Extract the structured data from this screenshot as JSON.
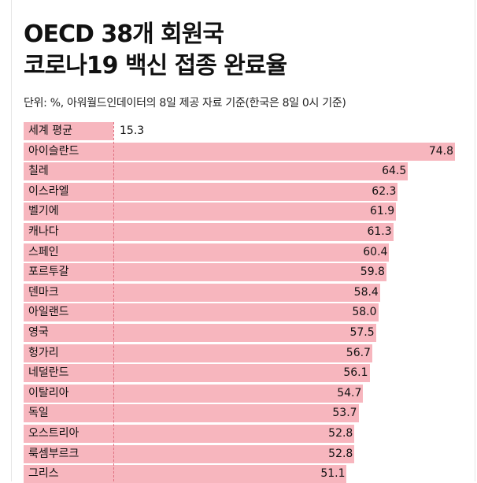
{
  "title": {
    "line1": "OECD 38개 회원국",
    "line2": "코로나19 백신 접종 완료율"
  },
  "unit_note": "단위: %, 아워월드인데이터의 8일 제공 자료 기준(한국은 8일 0시 기준)",
  "chart_data": {
    "type": "bar",
    "orientation": "horizontal",
    "title": "OECD 38개 회원국 코로나19 백신 접종 완료율",
    "xlabel": "단위: %",
    "xlim": [
      0,
      74.8
    ],
    "categories": [
      "세계 평균",
      "아이슬란드",
      "칠레",
      "이스라엘",
      "벨기에",
      "캐나다",
      "스페인",
      "포르투갈",
      "덴마크",
      "아일랜드",
      "영국",
      "헝가리",
      "네덜란드",
      "이탈리아",
      "독일",
      "오스트리아",
      "룩셈부르크",
      "그리스"
    ],
    "values": [
      15.3,
      74.8,
      64.5,
      62.3,
      61.9,
      61.3,
      60.4,
      59.8,
      58.4,
      58.0,
      57.5,
      56.7,
      56.1,
      54.7,
      53.7,
      52.8,
      52.8,
      51.1
    ],
    "value_labels": [
      "15.3",
      "74.8",
      "64.5",
      "62.3",
      "61.9",
      "61.3",
      "60.4",
      "59.8",
      "58.4",
      "58.0",
      "57.5",
      "56.7",
      "56.1",
      "54.7",
      "53.7",
      "52.8",
      "52.8",
      "51.1"
    ]
  },
  "colors": {
    "bar": "#f7b6be",
    "world_bar": "#ffffff",
    "divider": "#e07080"
  }
}
